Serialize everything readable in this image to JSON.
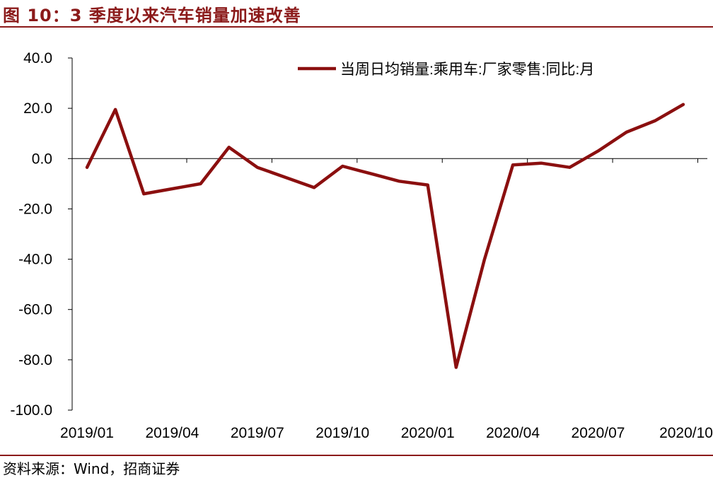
{
  "figure": {
    "title": "图 10：3 季度以来汽车销量加速改善",
    "source": "资料来源：Wind，招商证券",
    "accent_color": "#8b1a1a"
  },
  "chart_data": {
    "type": "line",
    "title": "",
    "xlabel": "",
    "ylabel": "",
    "ylim": [
      -100,
      40
    ],
    "yticks": [
      -100,
      -80,
      -60,
      -40,
      -20,
      0,
      20,
      40
    ],
    "ytick_labels": [
      "-100.0",
      "-80.0",
      "-60.0",
      "-40.0",
      "-20.0",
      "0.0",
      "20.0",
      "40.0"
    ],
    "x_tick_labels": [
      "2019/01",
      "2019/04",
      "2019/07",
      "2019/10",
      "2020/01",
      "2020/04",
      "2020/07",
      "2020/10"
    ],
    "x": [
      "2019/01",
      "2019/02",
      "2019/03",
      "2019/04",
      "2019/05",
      "2019/06",
      "2019/07",
      "2019/08",
      "2019/09",
      "2019/10",
      "2019/11",
      "2019/12",
      "2020/01",
      "2020/02",
      "2020/03",
      "2020/04",
      "2020/05",
      "2020/06",
      "2020/07",
      "2020/08",
      "2020/09",
      "2020/10"
    ],
    "legend_position": "top-right",
    "grid": false,
    "series": [
      {
        "name": "当周日均销量:乘用车:厂家零售:同比:月",
        "color": "#8b0f0f",
        "values": [
          -3.5,
          19.5,
          -14.0,
          -12.0,
          -10.0,
          4.5,
          -3.5,
          -7.5,
          -11.5,
          -3.0,
          -6.0,
          -9.0,
          -10.5,
          -83.0,
          -40.0,
          -2.5,
          -1.8,
          -3.5,
          3.0,
          10.5,
          15.0,
          21.5
        ]
      }
    ]
  }
}
